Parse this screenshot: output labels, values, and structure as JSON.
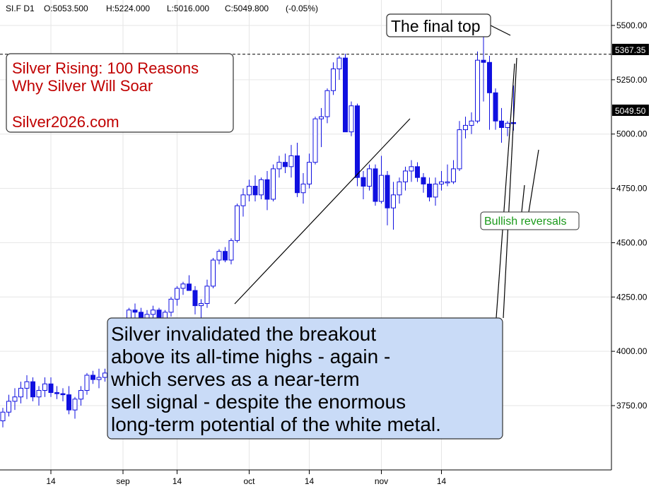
{
  "header": {
    "symbol": "SI.F D1",
    "open": "O:5053.500",
    "high": "H:5224.000",
    "low": "L:5016.000",
    "close": "C:5049.800",
    "change": "(-0.05%)"
  },
  "promo": {
    "line1": "Silver Rising: 100 Reasons",
    "line2": "Why Silver Will Soar",
    "line3": "Silver2026.com"
  },
  "callouts": {
    "final_top": "The final top",
    "bullish": "Bullish reversals",
    "main_lines": [
      "Silver invalidated the breakout",
      "above its all-time highs - again -",
      "which serves as a near-term",
      "sell signal - despite the enormous",
      "long-term potential of the white metal."
    ]
  },
  "price_tags": {
    "high_line": "5367.35",
    "last": "5049.50"
  },
  "colors": {
    "bear": "#1010e0",
    "bull_outline": "#1010e0",
    "promo_text": "#c00000",
    "bullish_text": "#1a9a1a",
    "callout_fill": "#c9dbf7"
  },
  "chart_data": {
    "type": "candlestick",
    "ylim": [
      3500,
      5600
    ],
    "yticks": [
      3750,
      4000,
      4250,
      4500,
      4750,
      5000,
      5250,
      5500
    ],
    "ytick_labels": [
      "3750.00",
      "4000.00",
      "4250.00",
      "4500.00",
      "4750.00",
      "5000.00",
      "5250.00",
      "5500.00"
    ],
    "xtick_labels": [
      {
        "label": "14",
        "index": 8
      },
      {
        "label": "sep",
        "index": 20
      },
      {
        "label": "14",
        "index": 29
      },
      {
        "label": "oct",
        "index": 41
      },
      {
        "label": "14",
        "index": 51
      },
      {
        "label": "nov",
        "index": 63
      },
      {
        "label": "14",
        "index": 73
      }
    ],
    "reference_line": 5367.35,
    "candles": [
      {
        "o": 3680,
        "h": 3740,
        "l": 3650,
        "c": 3720
      },
      {
        "o": 3720,
        "h": 3800,
        "l": 3700,
        "c": 3770
      },
      {
        "o": 3770,
        "h": 3830,
        "l": 3730,
        "c": 3790
      },
      {
        "o": 3790,
        "h": 3860,
        "l": 3760,
        "c": 3830
      },
      {
        "o": 3830,
        "h": 3890,
        "l": 3780,
        "c": 3860
      },
      {
        "o": 3860,
        "h": 3880,
        "l": 3770,
        "c": 3790
      },
      {
        "o": 3790,
        "h": 3840,
        "l": 3750,
        "c": 3820
      },
      {
        "o": 3820,
        "h": 3880,
        "l": 3790,
        "c": 3850
      },
      {
        "o": 3850,
        "h": 3880,
        "l": 3790,
        "c": 3810
      },
      {
        "o": 3810,
        "h": 3840,
        "l": 3780,
        "c": 3805
      },
      {
        "o": 3805,
        "h": 3830,
        "l": 3770,
        "c": 3800
      },
      {
        "o": 3800,
        "h": 3840,
        "l": 3710,
        "c": 3730
      },
      {
        "o": 3730,
        "h": 3790,
        "l": 3690,
        "c": 3780
      },
      {
        "o": 3780,
        "h": 3840,
        "l": 3750,
        "c": 3820
      },
      {
        "o": 3820,
        "h": 3900,
        "l": 3800,
        "c": 3890
      },
      {
        "o": 3890,
        "h": 3910,
        "l": 3850,
        "c": 3870
      },
      {
        "o": 3870,
        "h": 3920,
        "l": 3830,
        "c": 3880
      },
      {
        "o": 3880,
        "h": 3920,
        "l": 3860,
        "c": 3900
      },
      {
        "o": 3900,
        "h": 3960,
        "l": 3880,
        "c": 3940
      },
      {
        "o": 3940,
        "h": 4060,
        "l": 3900,
        "c": 4060
      },
      {
        "o": 4060,
        "h": 4140,
        "l": 4040,
        "c": 4120
      },
      {
        "o": 4120,
        "h": 4200,
        "l": 4080,
        "c": 4190
      },
      {
        "o": 4190,
        "h": 4220,
        "l": 4150,
        "c": 4180
      },
      {
        "o": 4180,
        "h": 4200,
        "l": 4110,
        "c": 4140
      },
      {
        "o": 4140,
        "h": 4190,
        "l": 4120,
        "c": 4170
      },
      {
        "o": 4170,
        "h": 4210,
        "l": 4140,
        "c": 4190
      },
      {
        "o": 4190,
        "h": 4200,
        "l": 4120,
        "c": 4140
      },
      {
        "o": 4140,
        "h": 4190,
        "l": 4120,
        "c": 4180
      },
      {
        "o": 4180,
        "h": 4250,
        "l": 4160,
        "c": 4240
      },
      {
        "o": 4240,
        "h": 4300,
        "l": 4210,
        "c": 4290
      },
      {
        "o": 4290,
        "h": 4320,
        "l": 4260,
        "c": 4310
      },
      {
        "o": 4310,
        "h": 4350,
        "l": 4280,
        "c": 4280
      },
      {
        "o": 4280,
        "h": 4300,
        "l": 4170,
        "c": 4210
      },
      {
        "o": 4210,
        "h": 4240,
        "l": 4150,
        "c": 4220
      },
      {
        "o": 4220,
        "h": 4330,
        "l": 4200,
        "c": 4300
      },
      {
        "o": 4300,
        "h": 4430,
        "l": 4290,
        "c": 4420
      },
      {
        "o": 4420,
        "h": 4470,
        "l": 4400,
        "c": 4460
      },
      {
        "o": 4460,
        "h": 4480,
        "l": 4410,
        "c": 4420
      },
      {
        "o": 4420,
        "h": 4520,
        "l": 4400,
        "c": 4510
      },
      {
        "o": 4510,
        "h": 4680,
        "l": 4500,
        "c": 4670
      },
      {
        "o": 4670,
        "h": 4750,
        "l": 4620,
        "c": 4720
      },
      {
        "o": 4720,
        "h": 4790,
        "l": 4690,
        "c": 4760
      },
      {
        "o": 4760,
        "h": 4810,
        "l": 4690,
        "c": 4720
      },
      {
        "o": 4720,
        "h": 4800,
        "l": 4700,
        "c": 4790
      },
      {
        "o": 4790,
        "h": 4830,
        "l": 4650,
        "c": 4700
      },
      {
        "o": 4700,
        "h": 4860,
        "l": 4690,
        "c": 4840
      },
      {
        "o": 4840,
        "h": 4900,
        "l": 4800,
        "c": 4870
      },
      {
        "o": 4870,
        "h": 4910,
        "l": 4820,
        "c": 4850
      },
      {
        "o": 4850,
        "h": 4950,
        "l": 4800,
        "c": 4900
      },
      {
        "o": 4900,
        "h": 4960,
        "l": 4710,
        "c": 4730
      },
      {
        "o": 4730,
        "h": 4820,
        "l": 4680,
        "c": 4770
      },
      {
        "o": 4770,
        "h": 4910,
        "l": 4750,
        "c": 4870
      },
      {
        "o": 4870,
        "h": 5080,
        "l": 4860,
        "c": 5070
      },
      {
        "o": 5070,
        "h": 5120,
        "l": 4940,
        "c": 5080
      },
      {
        "o": 5080,
        "h": 5210,
        "l": 5050,
        "c": 5200
      },
      {
        "o": 5200,
        "h": 5330,
        "l": 5180,
        "c": 5300
      },
      {
        "o": 5300,
        "h": 5360,
        "l": 5250,
        "c": 5350
      },
      {
        "o": 5350,
        "h": 5370,
        "l": 5010,
        "c": 5010
      },
      {
        "o": 5010,
        "h": 5150,
        "l": 4990,
        "c": 5130
      },
      {
        "o": 5130,
        "h": 5140,
        "l": 4760,
        "c": 4800
      },
      {
        "o": 4800,
        "h": 4830,
        "l": 4700,
        "c": 4760
      },
      {
        "o": 4760,
        "h": 4860,
        "l": 4740,
        "c": 4840
      },
      {
        "o": 4840,
        "h": 4860,
        "l": 4670,
        "c": 4690
      },
      {
        "o": 4690,
        "h": 4900,
        "l": 4680,
        "c": 4810
      },
      {
        "o": 4810,
        "h": 4830,
        "l": 4580,
        "c": 4660
      },
      {
        "o": 4660,
        "h": 4780,
        "l": 4560,
        "c": 4720
      },
      {
        "o": 4720,
        "h": 4800,
        "l": 4680,
        "c": 4780
      },
      {
        "o": 4780,
        "h": 4850,
        "l": 4740,
        "c": 4830
      },
      {
        "o": 4830,
        "h": 4880,
        "l": 4780,
        "c": 4850
      },
      {
        "o": 4850,
        "h": 4870,
        "l": 4780,
        "c": 4800
      },
      {
        "o": 4800,
        "h": 4820,
        "l": 4730,
        "c": 4770
      },
      {
        "o": 4770,
        "h": 4800,
        "l": 4690,
        "c": 4710
      },
      {
        "o": 4710,
        "h": 4800,
        "l": 4670,
        "c": 4770
      },
      {
        "o": 4770,
        "h": 4830,
        "l": 4740,
        "c": 4780
      },
      {
        "o": 4780,
        "h": 4860,
        "l": 4760,
        "c": 4780
      },
      {
        "o": 4780,
        "h": 4880,
        "l": 4770,
        "c": 4840
      },
      {
        "o": 4840,
        "h": 5060,
        "l": 4830,
        "c": 5020
      },
      {
        "o": 5020,
        "h": 5080,
        "l": 4980,
        "c": 5040
      },
      {
        "o": 5040,
        "h": 5100,
        "l": 5000,
        "c": 5060
      },
      {
        "o": 5060,
        "h": 5380,
        "l": 5050,
        "c": 5340
      },
      {
        "o": 5340,
        "h": 5450,
        "l": 5150,
        "c": 5330
      },
      {
        "o": 5330,
        "h": 5360,
        "l": 5020,
        "c": 5190
      },
      {
        "o": 5190,
        "h": 5210,
        "l": 5020,
        "c": 5060
      },
      {
        "o": 5060,
        "h": 5120,
        "l": 4960,
        "c": 5030
      },
      {
        "o": 5030,
        "h": 5060,
        "l": 4990,
        "c": 5050
      },
      {
        "o": 5053,
        "h": 5224,
        "l": 5016,
        "c": 5050
      }
    ]
  }
}
